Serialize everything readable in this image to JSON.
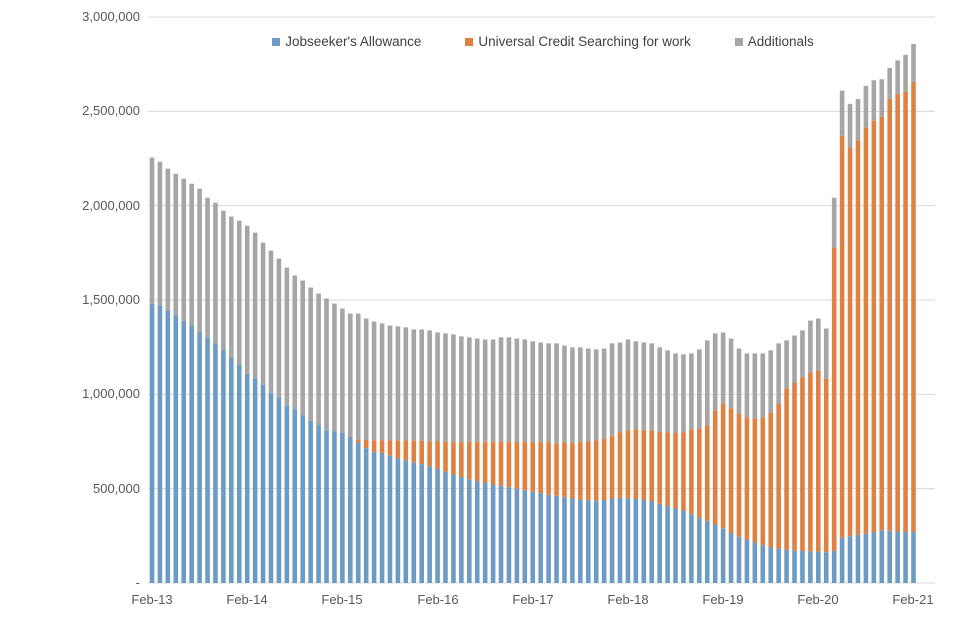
{
  "chart_data": {
    "type": "bar",
    "stacked": true,
    "title": "",
    "xlabel": "",
    "ylabel": "",
    "ylim": [
      0,
      3000000
    ],
    "grid": true,
    "legend_position": "top",
    "grid_color": "#d9d9d9",
    "axis_text_color": "#595959",
    "y_ticks": [
      3000000,
      2500000,
      2000000,
      1500000,
      1000000,
      500000,
      0
    ],
    "y_tick_labels": [
      "3,000,000",
      "2,500,000",
      "2,000,000",
      "1,500,000",
      "1,000,000",
      "500,000",
      "-"
    ],
    "x_tick_labels": [
      "Feb-13",
      "Feb-14",
      "Feb-15",
      "Feb-16",
      "Feb-17",
      "Feb-18",
      "Feb-19",
      "Feb-20",
      "Feb-21"
    ],
    "months": [
      "Feb-13",
      "Mar-13",
      "Apr-13",
      "May-13",
      "Jun-13",
      "Jul-13",
      "Aug-13",
      "Sep-13",
      "Oct-13",
      "Nov-13",
      "Dec-13",
      "Jan-14",
      "Feb-14",
      "Mar-14",
      "Apr-14",
      "May-14",
      "Jun-14",
      "Jul-14",
      "Aug-14",
      "Sep-14",
      "Oct-14",
      "Nov-14",
      "Dec-14",
      "Jan-15",
      "Feb-15",
      "Mar-15",
      "Apr-15",
      "May-15",
      "Jun-15",
      "Jul-15",
      "Aug-15",
      "Sep-15",
      "Oct-15",
      "Nov-15",
      "Dec-15",
      "Jan-16",
      "Feb-16",
      "Mar-16",
      "Apr-16",
      "May-16",
      "Jun-16",
      "Jul-16",
      "Aug-16",
      "Sep-16",
      "Oct-16",
      "Nov-16",
      "Dec-16",
      "Jan-17",
      "Feb-17",
      "Mar-17",
      "Apr-17",
      "May-17",
      "Jun-17",
      "Jul-17",
      "Aug-17",
      "Sep-17",
      "Oct-17",
      "Nov-17",
      "Dec-17",
      "Jan-18",
      "Feb-18",
      "Mar-18",
      "Apr-18",
      "May-18",
      "Jun-18",
      "Jul-18",
      "Aug-18",
      "Sep-18",
      "Oct-18",
      "Nov-18",
      "Dec-18",
      "Jan-19",
      "Feb-19",
      "Mar-19",
      "Apr-19",
      "May-19",
      "Jun-19",
      "Jul-19",
      "Aug-19",
      "Sep-19",
      "Oct-19",
      "Nov-19",
      "Dec-19",
      "Jan-20",
      "Feb-20",
      "Mar-20",
      "Apr-20",
      "May-20",
      "Jun-20",
      "Jul-20",
      "Aug-20",
      "Sep-20",
      "Oct-20",
      "Nov-20",
      "Dec-20",
      "Jan-21",
      "Feb-21"
    ],
    "series": [
      {
        "id": "jsa",
        "name": "Jobseeker's Allowance",
        "color": "#6d9bc3",
        "values": [
          1480000,
          1470000,
          1445000,
          1420000,
          1390000,
          1365000,
          1330000,
          1300000,
          1270000,
          1235000,
          1195000,
          1160000,
          1110000,
          1085000,
          1050000,
          1005000,
          985000,
          940000,
          920000,
          890000,
          860000,
          835000,
          810000,
          805000,
          795000,
          775000,
          745000,
          715000,
          695000,
          690000,
          675000,
          660000,
          650000,
          640000,
          630000,
          618000,
          605000,
          590000,
          575000,
          562000,
          550000,
          540000,
          530000,
          522000,
          515000,
          508000,
          500000,
          492000,
          484000,
          476000,
          468000,
          462000,
          455000,
          448000,
          442000,
          438000,
          436000,
          440000,
          448000,
          452000,
          450000,
          445000,
          440000,
          432000,
          420000,
          408000,
          395000,
          382000,
          365000,
          345000,
          330000,
          310000,
          290000,
          265000,
          245000,
          230000,
          215000,
          200000,
          190000,
          182000,
          177000,
          173000,
          170000,
          168000,
          166000,
          163000,
          170000,
          240000,
          248000,
          255000,
          262000,
          270000,
          280000,
          276000,
          273000,
          270000,
          270000
        ]
      },
      {
        "id": "uc",
        "name": "Universal Credit Searching for work",
        "color": "#de8244",
        "values": [
          0,
          0,
          0,
          0,
          0,
          0,
          0,
          0,
          0,
          0,
          0,
          0,
          0,
          0,
          0,
          0,
          0,
          0,
          0,
          0,
          0,
          0,
          0,
          0,
          0,
          5000,
          15000,
          43000,
          62000,
          67000,
          81000,
          96000,
          105000,
          114000,
          123000,
          133000,
          145000,
          158000,
          172000,
          185000,
          198000,
          208000,
          218000,
          227000,
          234000,
          241000,
          248000,
          255000,
          263000,
          271000,
          280000,
          279000,
          287000,
          296000,
          305000,
          312000,
          319000,
          325000,
          332000,
          348000,
          360000,
          370000,
          372000,
          376000,
          382000,
          390000,
          400000,
          418000,
          450000,
          475000,
          506000,
          605000,
          662000,
          661000,
          654000,
          648000,
          658000,
          678000,
          715000,
          770000,
          855000,
          890000,
          920000,
          948000,
          961000,
          922000,
          1608000,
          2130000,
          2060000,
          2090000,
          2150000,
          2180000,
          2190000,
          2290000,
          2320000,
          2333000,
          2386000
        ]
      },
      {
        "id": "additionals",
        "name": "Additionals",
        "color": "#a6a6a6",
        "values": [
          775000,
          763000,
          751000,
          749000,
          753000,
          751000,
          760000,
          742000,
          746000,
          738000,
          747000,
          761000,
          784000,
          772000,
          754000,
          757000,
          735000,
          732000,
          710000,
          713000,
          706000,
          699000,
          698000,
          676000,
          660000,
          648000,
          668000,
          644000,
          629000,
          619000,
          609000,
          604000,
          600000,
          590000,
          591000,
          588000,
          578000,
          575000,
          571000,
          560000,
          554000,
          548000,
          543000,
          542000,
          553000,
          553000,
          548000,
          544000,
          534000,
          528000,
          522000,
          529000,
          517000,
          505000,
          502000,
          493000,
          483000,
          478000,
          490000,
          475000,
          481000,
          466000,
          463000,
          462000,
          447000,
          435000,
          422000,
          412000,
          402000,
          418000,
          450000,
          408000,
          376000,
          370000,
          344000,
          339000,
          344000,
          339000,
          328000,
          318000,
          254000,
          249000,
          249000,
          275000,
          275000,
          264000,
          264000,
          240000,
          232000,
          220000,
          223000,
          215000,
          200000,
          164000,
          177000,
          197000,
          201000
        ]
      }
    ]
  }
}
